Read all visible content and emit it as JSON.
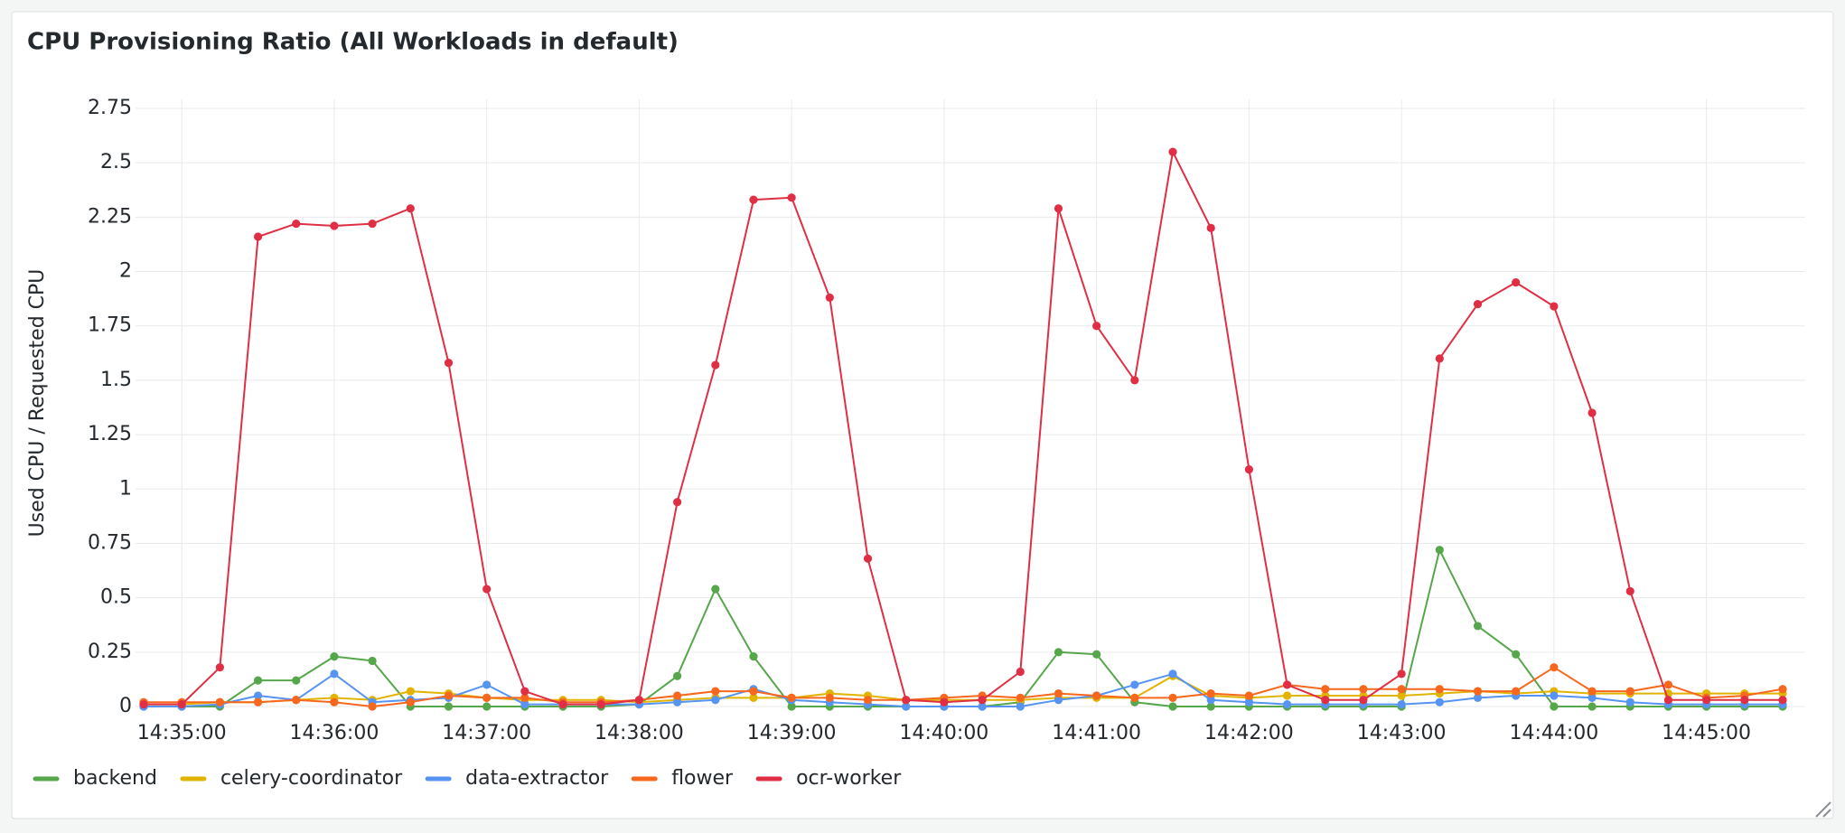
{
  "chart_data": {
    "type": "line",
    "title": "CPU Provisioning Ratio (All Workloads in default)",
    "y_label": "Used CPU / Requested CPU",
    "x": [
      "14:34:45",
      "14:35:00",
      "14:35:15",
      "14:35:30",
      "14:35:45",
      "14:36:00",
      "14:36:15",
      "14:36:30",
      "14:36:45",
      "14:37:00",
      "14:37:15",
      "14:37:30",
      "14:37:45",
      "14:38:00",
      "14:38:15",
      "14:38:30",
      "14:38:45",
      "14:39:00",
      "14:39:15",
      "14:39:30",
      "14:39:45",
      "14:40:00",
      "14:40:15",
      "14:40:30",
      "14:40:45",
      "14:41:00",
      "14:41:15",
      "14:41:30",
      "14:41:45",
      "14:42:00",
      "14:42:15",
      "14:42:30",
      "14:42:45",
      "14:43:00",
      "14:43:15",
      "14:43:30",
      "14:43:45",
      "14:44:00",
      "14:44:15",
      "14:44:30",
      "14:44:45",
      "14:45:00",
      "14:45:15",
      "14:45:30"
    ],
    "xlim": [
      "14:34:45",
      "14:45:30"
    ],
    "xticks": [
      "14:35:00",
      "14:36:00",
      "14:37:00",
      "14:38:00",
      "14:39:00",
      "14:40:00",
      "14:41:00",
      "14:42:00",
      "14:43:00",
      "14:44:00",
      "14:45:00"
    ],
    "ylim": [
      0,
      2.75
    ],
    "yticks": [
      0,
      0.25,
      0.5,
      0.75,
      1,
      1.25,
      1.5,
      1.75,
      2,
      2.25,
      2.5,
      2.75
    ],
    "grid": true,
    "legend": "bottom",
    "series": [
      {
        "name": "backend",
        "color": "#56a64b",
        "values": [
          0,
          0,
          0,
          0.12,
          0.12,
          0.23,
          0.21,
          0,
          0,
          0,
          0,
          0,
          0,
          0.01,
          0.14,
          0.54,
          0.23,
          0,
          0,
          0,
          0,
          0,
          0,
          0.02,
          0.25,
          0.24,
          0.02,
          0,
          0,
          0,
          0,
          0,
          0,
          0,
          0.72,
          0.37,
          0.24,
          0,
          0,
          0,
          0,
          0,
          0,
          0
        ]
      },
      {
        "name": "celery-coordinator",
        "color": "#e0b400",
        "values": [
          0.01,
          0.01,
          0.02,
          0.02,
          0.03,
          0.04,
          0.03,
          0.07,
          0.06,
          0.04,
          0.03,
          0.03,
          0.03,
          0.02,
          0.03,
          0.04,
          0.04,
          0.04,
          0.06,
          0.05,
          0.03,
          0.03,
          0.03,
          0.03,
          0.04,
          0.04,
          0.04,
          0.14,
          0.05,
          0.04,
          0.05,
          0.05,
          0.05,
          0.05,
          0.06,
          0.07,
          0.06,
          0.07,
          0.06,
          0.06,
          0.06,
          0.06,
          0.06,
          0.06
        ]
      },
      {
        "name": "data-extractor",
        "color": "#5794f2",
        "values": [
          0,
          0,
          0.01,
          0.05,
          0.03,
          0.15,
          0.02,
          0.03,
          0.04,
          0.1,
          0.01,
          0.01,
          0.01,
          0.01,
          0.02,
          0.03,
          0.08,
          0.03,
          0.02,
          0.01,
          0,
          0,
          0,
          0,
          0.03,
          0.05,
          0.1,
          0.15,
          0.03,
          0.02,
          0.01,
          0.01,
          0.01,
          0.01,
          0.02,
          0.04,
          0.05,
          0.05,
          0.04,
          0.02,
          0.01,
          0.01,
          0.01,
          0.01
        ]
      },
      {
        "name": "flower",
        "color": "#f7671e",
        "values": [
          0.02,
          0.02,
          0.02,
          0.02,
          0.03,
          0.02,
          0,
          0.02,
          0.05,
          0.04,
          0.04,
          0.02,
          0.02,
          0.03,
          0.05,
          0.07,
          0.07,
          0.04,
          0.04,
          0.03,
          0.03,
          0.04,
          0.05,
          0.04,
          0.06,
          0.05,
          0.04,
          0.04,
          0.06,
          0.05,
          0.1,
          0.08,
          0.08,
          0.08,
          0.08,
          0.07,
          0.07,
          0.18,
          0.07,
          0.07,
          0.1,
          0.04,
          0.05,
          0.08
        ]
      },
      {
        "name": "ocr-worker",
        "color": "#e02f44",
        "values": [
          0.01,
          0.01,
          0.18,
          2.16,
          2.22,
          2.21,
          2.22,
          2.29,
          1.58,
          0.54,
          0.07,
          0.01,
          0.01,
          0.03,
          0.94,
          1.57,
          2.33,
          2.34,
          1.88,
          0.68,
          0.03,
          0.02,
          0.03,
          0.16,
          2.29,
          1.75,
          1.5,
          2.55,
          2.2,
          1.09,
          0.1,
          0.03,
          0.03,
          0.15,
          1.6,
          1.85,
          1.95,
          1.84,
          1.35,
          0.53,
          0.03,
          0.03,
          0.03,
          0.03
        ]
      }
    ]
  }
}
